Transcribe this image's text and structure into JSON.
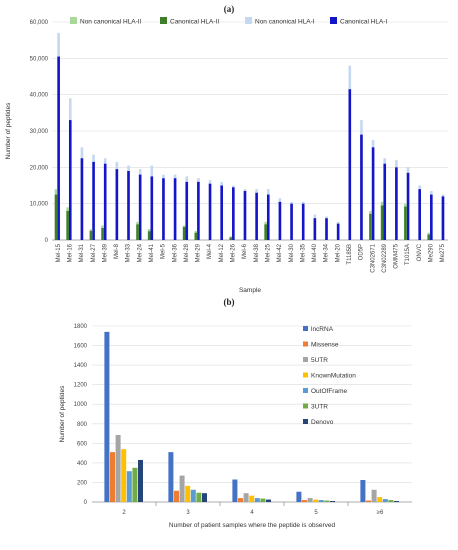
{
  "panel_a_label": "(a)",
  "panel_b_label": "(b)",
  "chart_data": [
    {
      "type": "bar",
      "title": "",
      "xlabel": "Sample",
      "ylabel": "Number of peptides",
      "ylim": [
        0,
        60000
      ],
      "yticks": [
        "0",
        "10,000",
        "20,000",
        "30,000",
        "40,000",
        "50,000",
        "60,000"
      ],
      "grid": true,
      "legend_position": "top",
      "categories": [
        "Mel-15",
        "Mel-16",
        "Mel-31",
        "Mel-27",
        "Mel-39",
        "Mel-8",
        "Mel-33",
        "Mel-24",
        "Mel-41",
        "Mel-5",
        "Mel-36",
        "Mel-28",
        "Mel-29",
        "Mel-4",
        "Mel-12",
        "Mel-26",
        "Mel-6",
        "Mel-38",
        "Mel-25",
        "Mel-42",
        "Mel-30",
        "Mel-35",
        "Mel-40",
        "Mel-34",
        "Mel-20",
        "T1185B",
        "OD5P",
        "C3N02671",
        "C3N02289",
        "OMM475",
        "T1015A",
        "ONVC",
        "Me290",
        "Me275"
      ],
      "series": [
        {
          "name": "Non canonical HLA-II",
          "color": "#a9d99a",
          "values": [
            14000,
            9000,
            0,
            3000,
            4000,
            0,
            0,
            5000,
            3000,
            0,
            0,
            4000,
            2500,
            0,
            0,
            1000,
            0,
            0,
            5000,
            0,
            0,
            0,
            0,
            0,
            0,
            0,
            0,
            8000,
            10500,
            0,
            10000,
            0,
            2000,
            0
          ]
        },
        {
          "name": "Canonical HLA-II",
          "color": "#3f7f2b",
          "values": [
            12500,
            8000,
            0,
            2500,
            3300,
            0,
            0,
            4300,
            2400,
            0,
            0,
            3600,
            2000,
            0,
            0,
            700,
            0,
            0,
            4300,
            0,
            0,
            0,
            0,
            0,
            0,
            0,
            0,
            7200,
            9500,
            0,
            9200,
            0,
            1500,
            0
          ]
        },
        {
          "name": "Non canonical HLA-I",
          "color": "#c5d8f0",
          "values": [
            57000,
            39000,
            25500,
            23500,
            22500,
            21500,
            20500,
            19500,
            20500,
            18000,
            18000,
            17500,
            17000,
            16500,
            16000,
            15000,
            14000,
            14000,
            14000,
            11500,
            10500,
            10500,
            7000,
            6500,
            5000,
            48000,
            33000,
            27500,
            22500,
            22000,
            20000,
            15000,
            13500,
            12500
          ]
        },
        {
          "name": "Canonical HLA-I",
          "color": "#1515c8",
          "values": [
            50500,
            33000,
            22500,
            21500,
            21000,
            19500,
            19000,
            18000,
            17500,
            17000,
            17000,
            16000,
            16000,
            15500,
            15000,
            14500,
            13500,
            13000,
            12500,
            10500,
            10000,
            10000,
            6000,
            6000,
            4500,
            41500,
            29000,
            25500,
            21000,
            20000,
            18500,
            14000,
            12500,
            12000
          ]
        }
      ]
    },
    {
      "type": "bar",
      "title": "",
      "xlabel": "Number of patient samples where the peptide is observed",
      "ylabel": "Number of peptides",
      "ylim": [
        0,
        1800
      ],
      "yticks": [
        "0",
        "200",
        "400",
        "600",
        "800",
        "1000",
        "1200",
        "1400",
        "1600",
        "1800"
      ],
      "grid": true,
      "legend_position": "right",
      "categories": [
        "2",
        "3",
        "4",
        "5",
        "≥6"
      ],
      "series": [
        {
          "name": "lncRNA",
          "color": "#4472c4",
          "values": [
            1740,
            510,
            230,
            105,
            225
          ]
        },
        {
          "name": "Missense",
          "color": "#ed7d31",
          "values": [
            510,
            115,
            40,
            20,
            15
          ]
        },
        {
          "name": "5UTR",
          "color": "#a5a5a5",
          "values": [
            685,
            270,
            90,
            40,
            125
          ]
        },
        {
          "name": "KnownMutation",
          "color": "#ffc000",
          "values": [
            540,
            165,
            65,
            25,
            50
          ]
        },
        {
          "name": "OutOfFrame",
          "color": "#5b9bd5",
          "values": [
            315,
            125,
            40,
            20,
            30
          ]
        },
        {
          "name": "3UTR",
          "color": "#70ad47",
          "values": [
            350,
            95,
            35,
            15,
            20
          ]
        },
        {
          "name": "Denovo",
          "color": "#264478",
          "values": [
            430,
            90,
            25,
            10,
            10
          ]
        }
      ]
    }
  ]
}
